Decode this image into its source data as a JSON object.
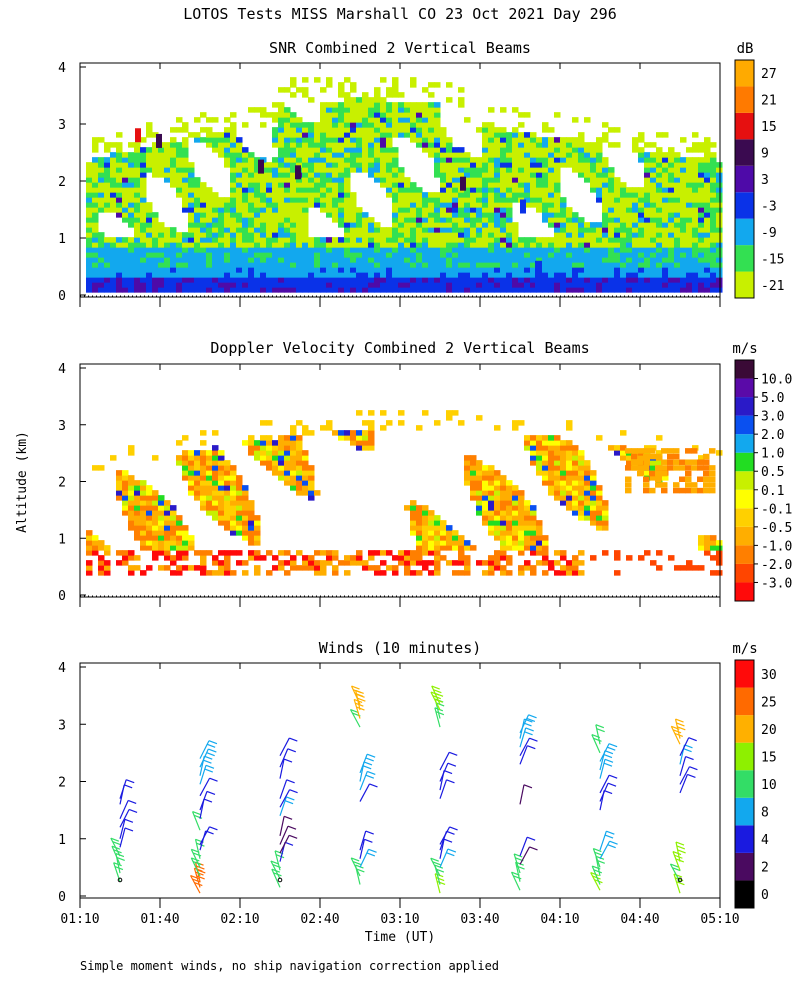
{
  "header": {
    "title": "LOTOS Tests MISS Marshall CO  23 Oct 2021 Day 296"
  },
  "footer": {
    "note": "Simple moment winds, no ship navigation correction applied"
  },
  "colors": {
    "snr": [
      "#c8f000",
      "#33e052",
      "#12a8ee",
      "#0a32e8",
      "#4e0aa8",
      "#3a0a50",
      "#e61010",
      "#ff7a00",
      "#ffaa00"
    ],
    "doppler": [
      "#ff0a0a",
      "#ff4500",
      "#ff7f00",
      "#ffae00",
      "#ffd000",
      "#ffff00",
      "#c8f000",
      "#22dd22",
      "#12a8ee",
      "#0a50f0",
      "#2a1ac8",
      "#5a0aa8",
      "#3a0a36"
    ],
    "wind": [
      "#000000",
      "#4a0a60",
      "#1a1ae0",
      "#12a8ee",
      "#33dd66",
      "#8ef000",
      "#ffb000",
      "#ff6a00",
      "#ff0a0a"
    ]
  },
  "chart_data": [
    {
      "type": "heatmap",
      "name": "snr",
      "title": "SNR Combined 2 Vertical Beams",
      "ylim": [
        0,
        4
      ],
      "yticks": [
        "0",
        "1",
        "2",
        "3",
        "4"
      ],
      "xlim_minutes": [
        70,
        310
      ],
      "colorbar": {
        "unit": "dB",
        "labels": [
          "-21",
          "-15",
          "-9",
          "-3",
          "3",
          "9",
          "15",
          "21",
          "27"
        ]
      },
      "grid": false
    },
    {
      "type": "heatmap",
      "name": "doppler",
      "title": "Doppler Velocity Combined 2 Vertical Beams",
      "ylabel": "Altitude (km)",
      "ylim": [
        0,
        4
      ],
      "yticks": [
        "0",
        "1",
        "2",
        "3",
        "4"
      ],
      "xlim_minutes": [
        70,
        310
      ],
      "colorbar": {
        "unit": "m/s",
        "labels": [
          "-3.0",
          "-2.0",
          "-1.0",
          "-0.5",
          "-0.1",
          "0.1",
          "0.5",
          "1.0",
          "2.0",
          "3.0",
          "5.0",
          "10.0"
        ]
      },
      "grid": false
    },
    {
      "type": "scatter",
      "name": "winds",
      "title": "Winds (10 minutes)",
      "xlabel": "Time (UT)",
      "ylim": [
        0,
        4
      ],
      "yticks": [
        "0",
        "1",
        "2",
        "3",
        "4"
      ],
      "xlim_minutes": [
        70,
        310
      ],
      "xticks": [
        "01:10",
        "01:40",
        "02:10",
        "02:40",
        "03:10",
        "03:40",
        "04:10",
        "04:40",
        "05:10"
      ],
      "profile_times_minutes": [
        85,
        115,
        145,
        175,
        205,
        235,
        265,
        295
      ],
      "colorbar": {
        "unit": "m/s",
        "labels": [
          "0",
          "2",
          "4",
          "8",
          "10",
          "15",
          "20",
          "25",
          "30"
        ]
      },
      "profiles": [
        {
          "t": 85,
          "barbs": [
            [
              0.25,
              4
            ],
            [
              0.4,
              4
            ],
            [
              0.55,
              4
            ],
            [
              0.7,
              4
            ],
            [
              0.85,
              2
            ],
            [
              1.0,
              2
            ],
            [
              1.2,
              2
            ],
            [
              1.35,
              2
            ],
            [
              1.6,
              2
            ],
            [
              1.7,
              2
            ]
          ]
        },
        {
          "t": 115,
          "barbs": [
            [
              0.05,
              7
            ],
            [
              0.15,
              7
            ],
            [
              0.25,
              7
            ],
            [
              0.35,
              4
            ],
            [
              0.5,
              4
            ],
            [
              0.65,
              4
            ],
            [
              0.8,
              2
            ],
            [
              0.9,
              2
            ],
            [
              1.15,
              4
            ],
            [
              1.35,
              2
            ],
            [
              1.5,
              2
            ],
            [
              1.75,
              2
            ],
            [
              1.95,
              3
            ],
            [
              2.1,
              3
            ],
            [
              2.25,
              3
            ],
            [
              2.4,
              3
            ]
          ]
        },
        {
          "t": 145,
          "barbs": [
            [
              0.15,
              4
            ],
            [
              0.3,
              4
            ],
            [
              0.45,
              4
            ],
            [
              0.6,
              2
            ],
            [
              0.75,
              1
            ],
            [
              0.9,
              1
            ],
            [
              1.05,
              1
            ],
            [
              1.4,
              3
            ],
            [
              1.55,
              2
            ],
            [
              1.7,
              2
            ],
            [
              2.05,
              2
            ],
            [
              2.25,
              2
            ],
            [
              2.45,
              2
            ]
          ]
        },
        {
          "t": 175,
          "barbs": [
            [
              0.2,
              4
            ],
            [
              0.35,
              4
            ],
            [
              0.5,
              3
            ],
            [
              0.65,
              2
            ],
            [
              0.8,
              2
            ],
            [
              1.65,
              2
            ],
            [
              1.85,
              3
            ],
            [
              2.0,
              3
            ],
            [
              2.15,
              3
            ],
            [
              2.95,
              4
            ],
            [
              3.1,
              6
            ],
            [
              3.25,
              6
            ],
            [
              3.35,
              6
            ]
          ]
        },
        {
          "t": 205,
          "barbs": [
            [
              0.05,
              5
            ],
            [
              0.2,
              4
            ],
            [
              0.35,
              4
            ],
            [
              0.5,
              3
            ],
            [
              0.65,
              2
            ],
            [
              0.8,
              2
            ],
            [
              0.9,
              2
            ],
            [
              1.7,
              2
            ],
            [
              1.85,
              2
            ],
            [
              2.0,
              2
            ],
            [
              2.2,
              2
            ],
            [
              2.95,
              4
            ],
            [
              3.1,
              4
            ],
            [
              3.25,
              5
            ],
            [
              3.35,
              5
            ]
          ]
        },
        {
          "t": 235,
          "barbs": [
            [
              0.1,
              4
            ],
            [
              0.25,
              4
            ],
            [
              0.4,
              4
            ],
            [
              0.55,
              1
            ],
            [
              0.7,
              2
            ],
            [
              1.6,
              1
            ],
            [
              2.3,
              2
            ],
            [
              2.45,
              2
            ],
            [
              2.6,
              3
            ],
            [
              2.75,
              3
            ],
            [
              2.85,
              3
            ]
          ]
        },
        {
          "t": 265,
          "barbs": [
            [
              0.1,
              5
            ],
            [
              0.2,
              4
            ],
            [
              0.35,
              4
            ],
            [
              0.5,
              4
            ],
            [
              0.65,
              3
            ],
            [
              0.8,
              3
            ],
            [
              1.5,
              2
            ],
            [
              1.65,
              2
            ],
            [
              1.8,
              2
            ],
            [
              2.05,
              3
            ],
            [
              2.2,
              3
            ],
            [
              2.35,
              3
            ],
            [
              2.5,
              4
            ],
            [
              2.65,
              4
            ]
          ]
        },
        {
          "t": 295,
          "barbs": [
            [
              0.05,
              5
            ],
            [
              0.25,
              4
            ],
            [
              0.45,
              5
            ],
            [
              0.6,
              5
            ],
            [
              1.8,
              2
            ],
            [
              1.95,
              2
            ],
            [
              2.1,
              2
            ],
            [
              2.3,
              3
            ],
            [
              2.45,
              2
            ],
            [
              2.65,
              6
            ],
            [
              2.75,
              6
            ]
          ]
        }
      ]
    }
  ]
}
